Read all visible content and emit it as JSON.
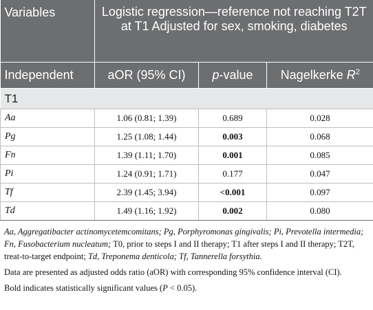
{
  "header": {
    "variables": "Variables",
    "group_title": "Logistic regression—reference not reaching T2T at T1 Adjusted for sex, smoking, diabetes",
    "col_independent": "Independent",
    "col_aor": "aOR (95% CI)",
    "col_p_italic": "p",
    "col_p_rest": "-value",
    "col_r2_text": "Nagelkerke ",
    "col_r2_symbol": "R",
    "col_r2_sup": "2"
  },
  "section": "T1",
  "rows": [
    {
      "var": "Aa",
      "aor": "1.06 (0.81; 1.39)",
      "p": "0.689",
      "p_bold": false,
      "r2": "0.028"
    },
    {
      "var": "Pg",
      "aor": "1.25 (1.08; 1.44)",
      "p": "0.003",
      "p_bold": true,
      "r2": "0.068"
    },
    {
      "var": "Fn",
      "aor": "1.39 (1.11; 1.70)",
      "p": "0.001",
      "p_bold": true,
      "r2": "0.085"
    },
    {
      "var": "Pi",
      "aor": "1.24 (0.91; 1.71)",
      "p": "0.177",
      "p_bold": false,
      "r2": "0.047"
    },
    {
      "var": "Tf",
      "aor": "2.39 (1.45; 3.94)",
      "p": "<0.001",
      "p_bold": true,
      "r2": "0.097"
    },
    {
      "var": "Td",
      "aor": "1.49 (1.16; 1.92)",
      "p": "0.002",
      "p_bold": true,
      "r2": "0.080"
    }
  ],
  "notes": {
    "abbrev_parts": [
      {
        "t": "Aa, Aggregatibacter actinomycetemcomitans; Pg, Porphyromonas gingivalis; Pi, Prevotella intermedia; Fn, Fusobacterium nucleatum;",
        "i": true
      },
      {
        "t": " T0, prior to steps I and II therapy; T1 after steps I and II therapy; T2T, treat-to-target endpoint;",
        "i": false
      },
      {
        "t": " Td, Treponema denticola; Tf, Tannerella forsythia.",
        "i": true
      }
    ],
    "note2": "Data are presented as adjusted odds ratio (aOR) with corresponding 95% confidence interval (CI).",
    "note3_pre": "Bold indicates statistically significant values (",
    "note3_p": "P",
    "note3_post": " < 0.05)."
  }
}
